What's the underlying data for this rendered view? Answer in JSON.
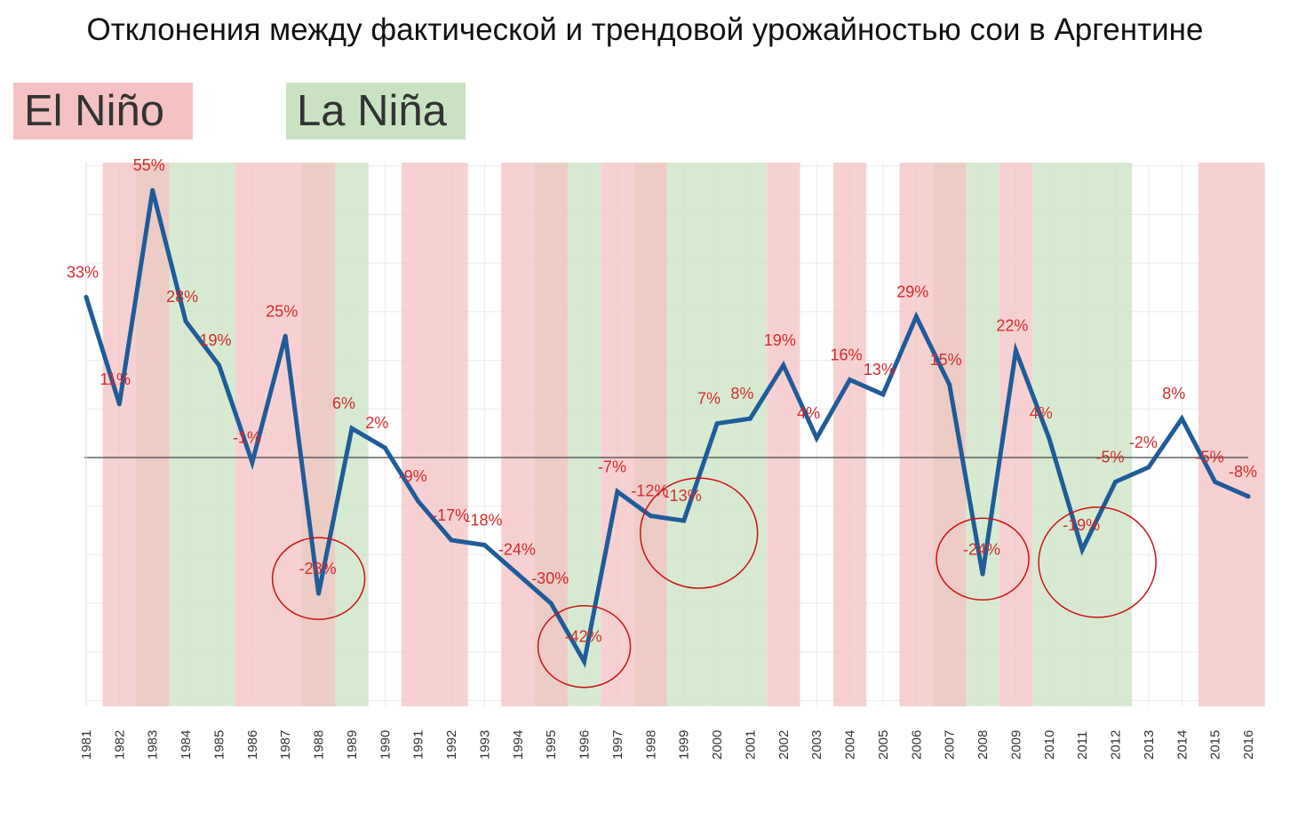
{
  "chart_data": {
    "type": "line",
    "title": "Отклонения между фактической и трендовой урожайностью сои в Аргентине",
    "legend": [
      {
        "name": "El Niño",
        "color": "#f4c2c2"
      },
      {
        "name": "La Niña",
        "color": "#c9e3c2"
      }
    ],
    "x": [
      "1981",
      "1982",
      "1983",
      "1984",
      "1985",
      "1986",
      "1987",
      "1988",
      "1989",
      "1990",
      "1991",
      "1992",
      "1993",
      "1994",
      "1995",
      "1996",
      "1997",
      "1998",
      "1999",
      "2000",
      "2001",
      "2002",
      "2003",
      "2004",
      "2005",
      "2006",
      "2007",
      "2008",
      "2009",
      "2010",
      "2011",
      "2012",
      "2013",
      "2014",
      "2015",
      "2016"
    ],
    "values": [
      33,
      11,
      55,
      28,
      19,
      -1,
      25,
      -28,
      6,
      2,
      -9,
      -17,
      -18,
      -24,
      -30,
      -42,
      -7,
      -12,
      -13,
      7,
      8,
      19,
      4,
      16,
      13,
      29,
      15,
      -24,
      22,
      4,
      -19,
      -5,
      -2,
      8,
      -5,
      -8
    ],
    "labels": [
      "33%",
      "11%",
      "55%",
      "28%",
      "19%",
      "-1%",
      "25%",
      "-28%",
      "6%",
      "2%",
      "-9%",
      "-17%",
      "-18%",
      "-24%",
      "-30%",
      "-42%",
      "-7%",
      "-12%",
      "-13%",
      "7%",
      "8%",
      "19%",
      "4%",
      "16%",
      "13%",
      "29%",
      "15%",
      "-24%",
      "22%",
      "4%",
      "-19%",
      "-5%",
      "-2%",
      "8%",
      "-5%",
      "-8%"
    ],
    "ylim": [
      -50,
      60
    ],
    "series_color": "#1f5c99",
    "label_color": "#d42a2a",
    "el_nino_periods": [
      [
        1982,
        1983
      ],
      [
        1986,
        1988
      ],
      [
        1991,
        1992
      ],
      [
        1994,
        1995
      ],
      [
        1997,
        1998
      ],
      [
        2002,
        2002
      ],
      [
        2004,
        2004
      ],
      [
        2006,
        2007
      ],
      [
        2009,
        2009
      ],
      [
        2015,
        2016
      ]
    ],
    "la_nina_periods": [
      [
        1983,
        1985
      ],
      [
        1988,
        1989
      ],
      [
        1995,
        1996
      ],
      [
        1998,
        2001
      ],
      [
        2007,
        2008
      ],
      [
        2010,
        2012
      ]
    ],
    "highlighted_years": [
      "1988",
      "1996",
      "1999",
      "2008",
      "2011"
    ],
    "highlight_color": "#cc1111"
  }
}
